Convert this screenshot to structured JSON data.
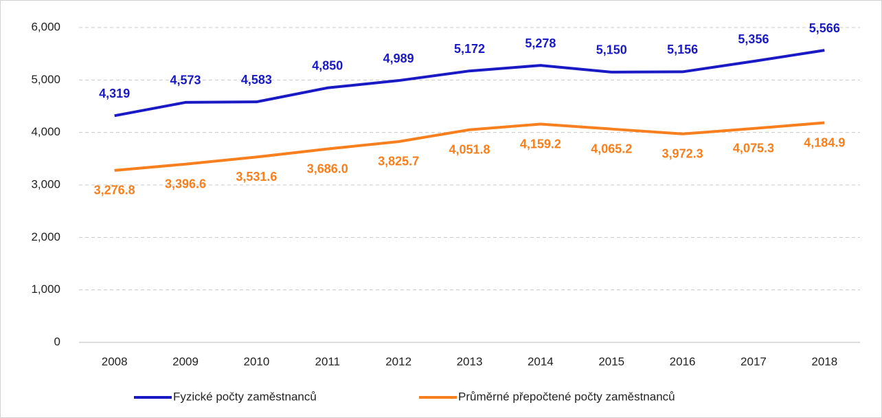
{
  "chart_data": {
    "type": "line",
    "categories": [
      "2008",
      "2009",
      "2010",
      "2011",
      "2012",
      "2013",
      "2014",
      "2015",
      "2016",
      "2017",
      "2018"
    ],
    "series": [
      {
        "name": "Fyzické počty zaměstnanců",
        "color": "#1a1ac4",
        "values": [
          4319,
          4573,
          4583,
          4850,
          4989,
          5172,
          5278,
          5150,
          5156,
          5356,
          5566
        ],
        "value_labels": [
          "4,319",
          "4,573",
          "4,583",
          "4,850",
          "4,989",
          "5,172",
          "5,278",
          "5,150",
          "5,156",
          "5,356",
          "5,566"
        ]
      },
      {
        "name": "Průměrné přepočtené počty zaměstnanců",
        "color": "#f77f1d",
        "values": [
          3276.8,
          3396.6,
          3531.6,
          3686.0,
          3825.7,
          4051.8,
          4159.2,
          4065.2,
          3972.3,
          4075.3,
          4184.9
        ],
        "value_labels": [
          "3,276.8",
          "3,396.6",
          "3,531.6",
          "3,686.0",
          "3,825.7",
          "4,051.8",
          "4,159.2",
          "4,065.2",
          "3,972.3",
          "4,075.3",
          "4,184.9"
        ]
      }
    ],
    "ylim": [
      0,
      6000
    ],
    "yticks": [
      0,
      {
        "value": 1000,
        "label": "1,000"
      },
      {
        "value": 2000,
        "label": "2,000"
      },
      {
        "value": 3000,
        "label": "3,000"
      },
      {
        "value": 4000,
        "label": "4,000"
      },
      {
        "value": 5000,
        "label": "5,000"
      },
      {
        "value": 6000,
        "label": "6,000"
      }
    ],
    "grid": true,
    "legend": "bottom"
  }
}
